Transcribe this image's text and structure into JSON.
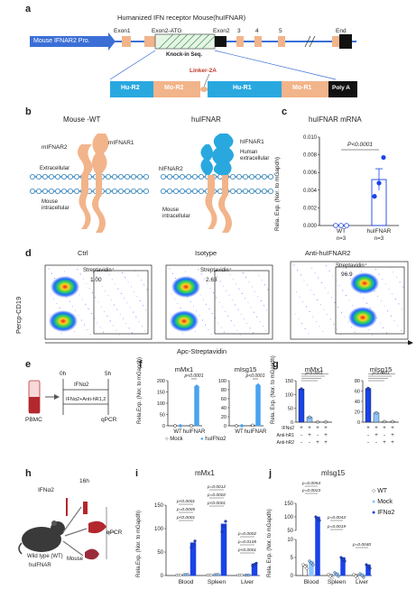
{
  "panel_labels": {
    "a": "a",
    "b": "b",
    "c": "c",
    "d": "d",
    "e": "e",
    "f": "f",
    "g": "g",
    "h": "h",
    "i": "i",
    "j": "j"
  },
  "a": {
    "title": "Humanized IFN receptor Mouse(huIFNAR)",
    "promoter": "Mouse IFNAR2 Pro.",
    "exon1": "Exon1",
    "exon2atg": "Exon2-ATG",
    "exon2": "Exon2",
    "e3": "3",
    "e4": "4",
    "e5": "5",
    "end": "End",
    "knockin": "Knock-in Seq.",
    "linker": "Linker-2A",
    "hu_r2": "Hu-R2",
    "mo_r2": "Mo-R2",
    "hu_r1": "Hu-R1",
    "mo_r1": "Mo-R1",
    "polya": "Poly A",
    "colors": {
      "blue": "#3b6fd6",
      "exon": "#f2b48a",
      "cyan": "#29a8e0",
      "black": "#111111",
      "linker_red": "#c0392b"
    }
  },
  "b": {
    "wt_title": "Mouse -WT",
    "hu_title": "huIFNAR",
    "mifnar2": "mIFNAR2",
    "mifnar1": "mIFNAR1",
    "extracellular": "Extracellular",
    "mouse_intracellular": "Mouse intracellular",
    "hifnar1": "hIFNAR1",
    "hifnar2": "hIFNAR2",
    "human_extracellular": "Human extracellular",
    "mouse_intracellular2": "Mouse intracellular"
  },
  "c": {
    "title": "huIFNAR mRNA",
    "ylabel": "Rela. Exp. (Nor. to mGapdh)",
    "pvalue": "P<0.0001",
    "chart_data": {
      "type": "scatter",
      "categories": [
        "WT",
        "huIFNAR"
      ],
      "ylim": [
        0,
        0.01
      ],
      "yticks": [
        "0.010",
        "0.008",
        "0.006",
        "0.004",
        "0.002",
        "0.000"
      ],
      "series": [
        {
          "values": [
            [
              0,
              0,
              0
            ],
            [
              0.0033,
              0.0048,
              0.0077
            ]
          ],
          "means": [
            0,
            0.0052
          ]
        }
      ],
      "n_labels": [
        "n=3",
        "n=3"
      ]
    }
  },
  "d": {
    "ctrl": "Ctrl",
    "isotype": "Isotype",
    "anti": "Anti-huIFNAR2",
    "gate": "Streptavidin⁺",
    "v1": "1.00",
    "v2": "2.63",
    "v3": "96.9",
    "ylabel": "Percp-CD19",
    "xlabel": "Apc-Streptavidin"
  },
  "e": {
    "t0": "0h",
    "t5": "5h",
    "treat1": "IFNα2",
    "treat2": "IFNα2+Anti-hR1,2",
    "pbmc": "PBMC",
    "qpcr": "qPCR"
  },
  "f": {
    "mx1": "mMx1",
    "isg15": "mIsg15",
    "ylabel": "Rela.Exp. (Nor. to mGapdh)",
    "p": "p<0.0001",
    "legend_mock": "Mock",
    "legend_ifn": "huIFNα2",
    "chart_data": [
      {
        "type": "bar",
        "title": "mMx1",
        "categories": [
          "WT",
          "huIFNAR"
        ],
        "ylim": [
          0,
          200
        ],
        "yticks": [
          "200",
          "150",
          "100",
          "50",
          "0"
        ],
        "series": [
          {
            "name": "Mock",
            "values": [
              0,
              1
            ]
          },
          {
            "name": "huIFNα2",
            "values": [
              0,
              175
            ]
          }
        ]
      },
      {
        "type": "bar",
        "title": "mIsg15",
        "categories": [
          "WT",
          "huIFNAR"
        ],
        "ylim": [
          0,
          100
        ],
        "yticks": [
          "100",
          "80",
          "60",
          "40",
          "20",
          "0"
        ],
        "series": [
          {
            "name": "Mock",
            "values": [
              0,
              1
            ]
          },
          {
            "name": "huIFNα2",
            "values": [
              0,
              90
            ]
          }
        ]
      }
    ]
  },
  "g": {
    "mx1": "mMx1",
    "isg15": "mIsg15",
    "ylabel": "Rela. Exp. (Nor. to mGapdh)",
    "row1": "IFNα2",
    "row2": "Anti-hR1",
    "row3": "Anti-hR2",
    "p": "p<0.0001",
    "signs": {
      "r1": [
        "+",
        "+",
        "+",
        "+"
      ],
      "r2": [
        "-",
        "+",
        "-",
        "+"
      ],
      "r3": [
        "-",
        "-",
        "+",
        "+"
      ]
    },
    "chart_data": [
      {
        "type": "bar",
        "title": "mMx1",
        "ylim": [
          0,
          150
        ],
        "yticks": [
          "150",
          "100",
          "50",
          "0"
        ],
        "values": [
          120,
          18,
          1,
          1
        ]
      },
      {
        "type": "bar",
        "title": "mIsg15",
        "ylim": [
          0,
          80
        ],
        "yticks": [
          "80",
          "60",
          "40",
          "20",
          "0"
        ],
        "values": [
          65,
          18,
          1,
          1
        ]
      }
    ]
  },
  "h": {
    "ifn": "IFNα2",
    "t16": "16h",
    "wt": "Wild type (WT)",
    "hu": "huIFNAR",
    "mouse": "Mouse",
    "qpcr": "qPCR"
  },
  "i": {
    "title": "mMx1",
    "ylabel": "Rela.Exp. (Nor. to mGapdh)",
    "categories": [
      "Blood",
      "Spleen",
      "Liver"
    ],
    "p": [
      "p<0.0001",
      "p=0.0005",
      "p<0.0001",
      "p=0.0012",
      "p=0.0002",
      "p<0.0001",
      "p=0.0002",
      "p=0.0105",
      "p<0.0001"
    ],
    "chart_data": {
      "type": "bar",
      "categories": [
        "Blood",
        "Spleen",
        "Liver"
      ],
      "ylim": [
        0,
        150
      ],
      "yticks": [
        "150",
        "100",
        "50",
        "0"
      ],
      "series": [
        {
          "name": "WT",
          "values": [
            1,
            1,
            1
          ]
        },
        {
          "name": "Mock",
          "values": [
            2,
            2,
            1
          ]
        },
        {
          "name": "IFNα2",
          "values": [
            70,
            110,
            25
          ]
        }
      ]
    }
  },
  "j": {
    "title": "mIsg15",
    "ylabel": "Rela. Exp. (Nor. to mGapdh)",
    "categories": [
      "Blood",
      "Spleen",
      "Liver"
    ],
    "p": [
      "p=0.0054",
      "p=0.0023",
      "p=0.0043",
      "p=0.0019",
      "p=0.0040"
    ],
    "legend": [
      "WT",
      "Mock",
      "IFNα2"
    ],
    "chart_data": {
      "type": "bar",
      "categories": [
        "Blood",
        "Spleen",
        "Liver"
      ],
      "ylim": [
        0,
        150
      ],
      "yticks": [
        "150",
        "100",
        "50",
        "10",
        "5",
        "0"
      ],
      "series": [
        {
          "name": "WT",
          "values": [
            3,
            0.3,
            0.3
          ]
        },
        {
          "name": "Mock",
          "values": [
            4,
            0.8,
            0.5
          ]
        },
        {
          "name": "IFNα2",
          "values": [
            100,
            5,
            3
          ]
        }
      ]
    }
  }
}
